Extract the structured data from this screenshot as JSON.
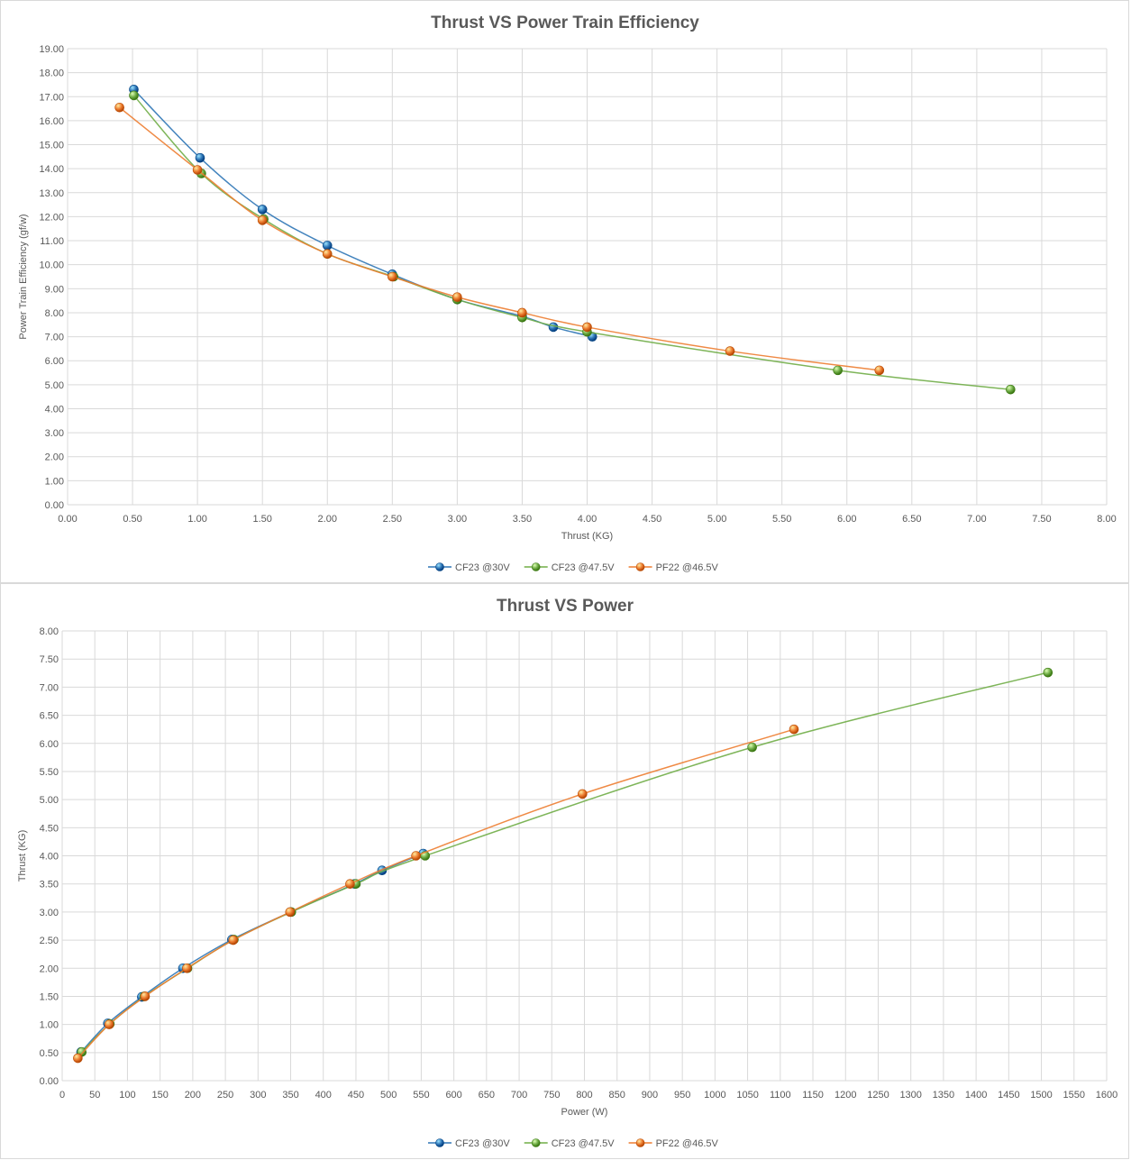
{
  "chart_data": [
    {
      "type": "line",
      "title": "Thrust VS Power Train Efficiency",
      "xlabel": "Thrust (KG)",
      "ylabel": "Power Train Efficiency (gf/w)",
      "xlim": [
        0,
        8
      ],
      "ylim": [
        0,
        19
      ],
      "x_ticks": [
        "0.00",
        "0.50",
        "1.00",
        "1.50",
        "2.00",
        "2.50",
        "3.00",
        "3.50",
        "4.00",
        "4.50",
        "5.00",
        "5.50",
        "6.00",
        "6.50",
        "7.00",
        "7.50",
        "8.00"
      ],
      "y_ticks": [
        "0.00",
        "1.00",
        "2.00",
        "3.00",
        "4.00",
        "5.00",
        "6.00",
        "7.00",
        "8.00",
        "9.00",
        "10.00",
        "11.00",
        "12.00",
        "13.00",
        "14.00",
        "15.00",
        "16.00",
        "17.00",
        "18.00",
        "19.00"
      ],
      "grid": true,
      "legend_position": "bottom",
      "series": [
        {
          "name": "CF23 @30V",
          "color": "#2e75b6",
          "points": [
            [
              0.51,
              17.3
            ],
            [
              1.02,
              14.45
            ],
            [
              1.5,
              12.3
            ],
            [
              2.0,
              10.8
            ],
            [
              2.5,
              9.6
            ],
            [
              3.0,
              8.55
            ],
            [
              3.5,
              7.85
            ],
            [
              3.74,
              7.4
            ],
            [
              4.04,
              7.0
            ]
          ]
        },
        {
          "name": "CF23 @47.5V",
          "color": "#70ad47",
          "points": [
            [
              0.51,
              17.05
            ],
            [
              1.03,
              13.8
            ],
            [
              1.51,
              11.9
            ],
            [
              2.0,
              10.45
            ],
            [
              2.51,
              9.5
            ],
            [
              3.0,
              8.55
            ],
            [
              3.5,
              7.8
            ],
            [
              4.0,
              7.2
            ],
            [
              5.93,
              5.6
            ],
            [
              7.26,
              4.8
            ]
          ]
        },
        {
          "name": "PF22 @46.5V",
          "color": "#ed7d31",
          "points": [
            [
              0.4,
              16.55
            ],
            [
              1.0,
              13.95
            ],
            [
              1.5,
              11.85
            ],
            [
              2.0,
              10.45
            ],
            [
              2.5,
              9.5
            ],
            [
              3.0,
              8.65
            ],
            [
              3.5,
              8.0
            ],
            [
              4.0,
              7.4
            ],
            [
              5.1,
              6.4
            ],
            [
              6.25,
              5.6
            ]
          ]
        }
      ]
    },
    {
      "type": "line",
      "title": "Thrust VS Power",
      "xlabel": "Power (W)",
      "ylabel": "Thrust (KG)",
      "xlim": [
        0,
        1600
      ],
      "ylim": [
        0,
        8
      ],
      "x_ticks": [
        "0",
        "50",
        "100",
        "150",
        "200",
        "250",
        "300",
        "350",
        "400",
        "450",
        "500",
        "550",
        "600",
        "650",
        "700",
        "750",
        "800",
        "850",
        "900",
        "950",
        "1000",
        "1050",
        "1100",
        "1150",
        "1200",
        "1250",
        "1300",
        "1350",
        "1400",
        "1450",
        "1500",
        "1550",
        "1600"
      ],
      "y_ticks": [
        "0.00",
        "0.50",
        "1.00",
        "1.50",
        "2.00",
        "2.50",
        "3.00",
        "3.50",
        "4.00",
        "4.50",
        "5.00",
        "5.50",
        "6.00",
        "6.50",
        "7.00",
        "7.50",
        "8.00"
      ],
      "grid": true,
      "legend_position": "bottom",
      "series": [
        {
          "name": "CF23 @30V",
          "color": "#2e75b6",
          "points": [
            [
              29,
              0.51
            ],
            [
              70,
              1.02
            ],
            [
              122,
              1.49
            ],
            [
              185,
              2.0
            ],
            [
              260,
              2.51
            ],
            [
              350,
              3.0
            ],
            [
              448,
              3.5
            ],
            [
              490,
              3.74
            ],
            [
              553,
              4.04
            ]
          ]
        },
        {
          "name": "CF23 @47.5V",
          "color": "#70ad47",
          "points": [
            [
              30,
              0.51
            ],
            [
              73,
              1.01
            ],
            [
              126,
              1.5
            ],
            [
              192,
              2.0
            ],
            [
              263,
              2.51
            ],
            [
              351,
              3.0
            ],
            [
              450,
              3.5
            ],
            [
              556,
              4.0
            ],
            [
              1057,
              5.93
            ],
            [
              1510,
              7.26
            ]
          ]
        },
        {
          "name": "PF22 @46.5V",
          "color": "#ed7d31",
          "points": [
            [
              24,
              0.4
            ],
            [
              72,
              1.0
            ],
            [
              127,
              1.5
            ],
            [
              191,
              2.0
            ],
            [
              262,
              2.5
            ],
            [
              349,
              3.0
            ],
            [
              441,
              3.5
            ],
            [
              542,
              4.0
            ],
            [
              797,
              5.1
            ],
            [
              1121,
              6.25
            ]
          ]
        }
      ]
    }
  ]
}
